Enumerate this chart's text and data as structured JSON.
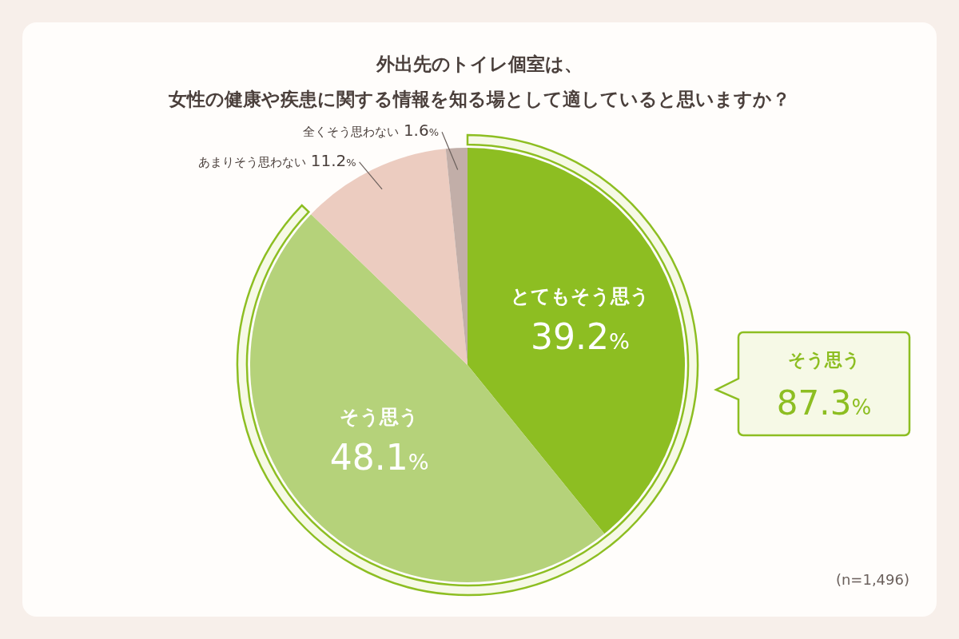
{
  "chart_data": {
    "type": "pie",
    "title": "外出先のトイレ個室は、",
    "subtitle": "女性の健康や疾患に関する情報を知る場として適していると思いますか？",
    "categories": [
      "とてもそう思う",
      "そう思う",
      "あまりそう思わない",
      "全くそう思わない"
    ],
    "values": [
      39.2,
      48.1,
      11.2,
      1.6
    ],
    "value_labels": [
      "39.2%",
      "48.1%",
      "11.2%",
      "1.6%"
    ],
    "colors": [
      "#8dbe22",
      "#b5d27a",
      "#ecccc0",
      "#c2aea8"
    ],
    "annotations": [
      "そう思う\n87.3%",
      "(n=1,496)"
    ]
  }
}
